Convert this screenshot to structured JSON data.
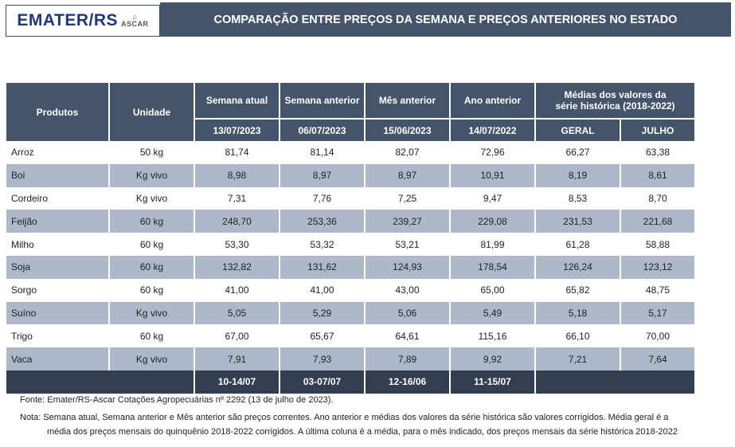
{
  "logo": {
    "text": "EMATER/RS",
    "sub": "ASCAR"
  },
  "title": "COMPARAÇÃO ENTRE PREÇOS DA SEMANA E PREÇOS ANTERIORES NO ESTADO",
  "headers": {
    "produtos": "Produtos",
    "unidade": "Unidade",
    "semana_atual": "Semana atual",
    "semana_anterior": "Semana anterior",
    "mes_anterior": "Mês anterior",
    "ano_anterior": "Ano anterior",
    "medias": "Médias dos valores da série histórica (2018-2022)",
    "dates": [
      "13/07/2023",
      "06/07/2023",
      "15/06/2023",
      "14/07/2022"
    ],
    "geral": "GERAL",
    "julho": "JULHO"
  },
  "rows": [
    [
      "Arroz",
      "50 kg",
      "81,74",
      "81,14",
      "82,07",
      "72,96",
      "66,27",
      "63,38"
    ],
    [
      "Boi",
      "Kg vivo",
      "8,98",
      "8,97",
      "8,97",
      "10,91",
      "8,19",
      "8,61"
    ],
    [
      "Cordeiro",
      "Kg vivo",
      "7,31",
      "7,76",
      "7,25",
      "9,47",
      "8,53",
      "8,70"
    ],
    [
      "Feijão",
      "60 kg",
      "248,70",
      "253,36",
      "239,27",
      "229,08",
      "231,53",
      "221,68"
    ],
    [
      "Milho",
      "60 kg",
      "53,30",
      "53,32",
      "53,21",
      "81,99",
      "61,28",
      "58,88"
    ],
    [
      "Soja",
      "60 kg",
      "132,82",
      "131,62",
      "124,93",
      "178,54",
      "126,24",
      "123,12"
    ],
    [
      "Sorgo",
      "60 kg",
      "41,00",
      "41,00",
      "43,00",
      "65,00",
      "65,82",
      "48,75"
    ],
    [
      "Suíno",
      "Kg vivo",
      "5,05",
      "5,29",
      "5,06",
      "5,49",
      "5,18",
      "5,17"
    ],
    [
      "Trigo",
      "60 kg",
      "67,00",
      "65,67",
      "64,61",
      "115,16",
      "66,10",
      "70,00"
    ],
    [
      "Vaca",
      "Kg vivo",
      "7,91",
      "7,93",
      "7,89",
      "9,92",
      "7,21",
      "7,64"
    ]
  ],
  "footer_periods": [
    "10-14/07",
    "03-07/07",
    "12-16/06",
    "11-15/07"
  ],
  "fonte": "Fonte: Emater/RS-Ascar Cotações Agropecuárias nº 2292 (13 de julho de 2023).",
  "nota_line1": "Nota: Semana atual, Semana anterior e Mês anterior são preços correntes. Ano anterior e médias dos valores da série histórica são valores corrigidos. Média geral é a",
  "nota_line2": "média dos preços mensais do quinquênio 2018-2022 corrigidos. A última coluna é a média, para o mês indicado, dos preços mensais da série histórica 2018-2022"
}
